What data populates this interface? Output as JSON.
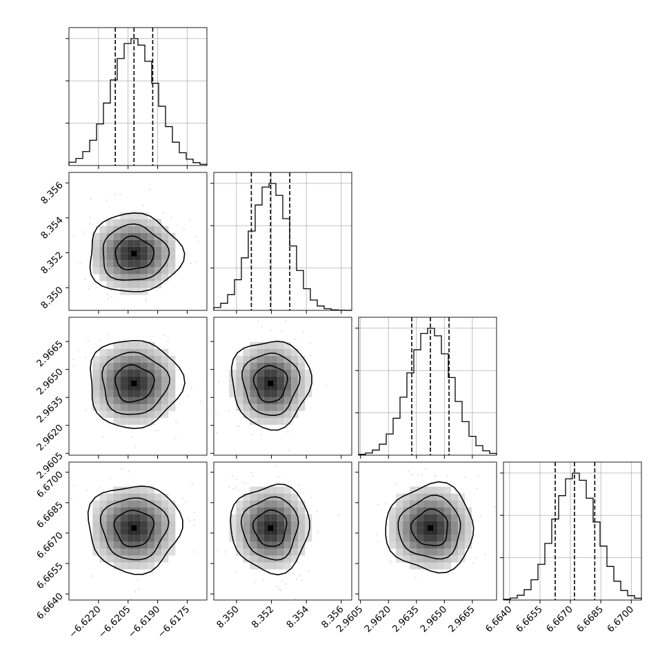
{
  "chart_data": {
    "type": "corner",
    "grid": true,
    "parameters": [
      {
        "range": [
          -6.6235,
          -6.6165
        ],
        "mean": -6.6202,
        "sigma": 0.00115,
        "quantiles": [
          -6.62115,
          -6.6202,
          -6.61925
        ],
        "ticks": [
          -6.622,
          -6.6205,
          -6.619,
          -6.6175
        ],
        "tick_labels": [
          "−6.6220",
          "−6.6205",
          "−6.6190",
          "−6.6175"
        ]
      },
      {
        "range": [
          8.3487,
          8.3566
        ],
        "mean": 8.35195,
        "sigma": 0.0011,
        "quantiles": [
          8.35085,
          8.35195,
          8.35305
        ],
        "ticks": [
          8.35,
          8.352,
          8.354,
          8.356
        ],
        "tick_labels": [
          "8.350",
          "8.352",
          "8.354",
          "8.356"
        ]
      },
      {
        "range": [
          2.9604,
          2.9678
        ],
        "mean": 2.96425,
        "sigma": 0.00115,
        "quantiles": [
          2.96325,
          2.96425,
          2.96525
        ],
        "ticks": [
          2.9605,
          2.962,
          2.9635,
          2.965,
          2.9665
        ],
        "tick_labels": [
          "2.9605",
          "2.9620",
          "2.9635",
          "2.9650",
          "2.9665"
        ]
      },
      {
        "range": [
          6.6637,
          6.6705
        ],
        "mean": 6.66725,
        "sigma": 0.00105,
        "quantiles": [
          6.66625,
          6.6672,
          6.6682
        ],
        "ticks": [
          6.664,
          6.6655,
          6.667,
          6.6685,
          6.67
        ],
        "tick_labels": [
          "6.6640",
          "6.6655",
          "6.6670",
          "6.6685",
          "6.6700"
        ]
      }
    ],
    "diagonal": "1D histogram with dashed vertical lines at the 16th, 50th and 84th percentiles",
    "off_diagonal": "2D density: gray scatter points, grayscale 2D histogram, 3 black contour levels"
  }
}
